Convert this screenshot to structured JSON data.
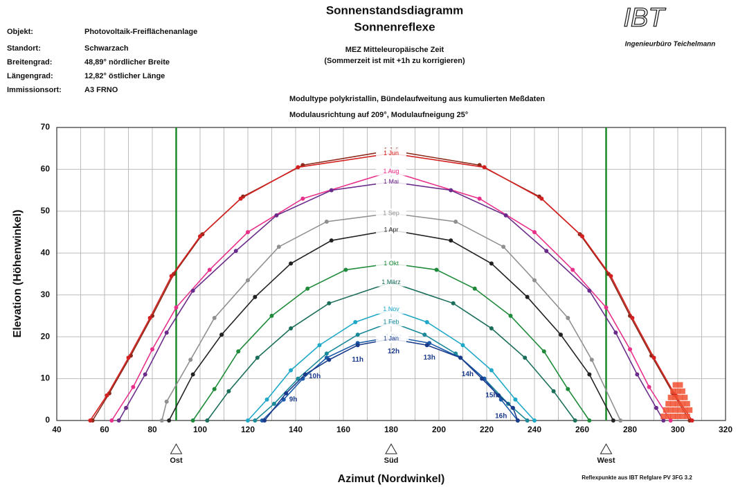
{
  "chart_data": {
    "type": "line",
    "title": "Sonnenstandsdiagramm",
    "subtitle": "Sonnenreflexe",
    "note1": "MEZ Mitteleuropäische Zeit",
    "note2": "(Sommerzeit ist mit +1h zu korrigieren)",
    "info": [
      [
        "Objekt:",
        "Photovoltaik-Freiflächenanlage"
      ],
      [
        "Standort:",
        "Schwarzach"
      ],
      [
        "Breitengrad:",
        "48,89°  nördlicher Breite"
      ],
      [
        "Längengrad:",
        "12,82°  östlicher Länge"
      ],
      [
        "Immissionsort:",
        "A3 FRNO"
      ]
    ],
    "module1": "Modultype polykristallin, Bündelaufweitung aus kumulierten Meßdaten",
    "module2": "Modulausrichtung auf 209°, Modulaufneigung 25°",
    "logo": "IBT",
    "logo_sub": "Ingenieurbüro Teichelmann",
    "footer": "Reflexpunkte aus IBT Refglare PV 3FG 3.2",
    "xlabel": "Azimut (Nordwinkel)",
    "ylabel": "Elevation (Höhenwinkel)",
    "xlim": [
      40,
      320
    ],
    "ylim": [
      0,
      70
    ],
    "xticks": [
      40,
      60,
      80,
      100,
      120,
      140,
      160,
      180,
      200,
      220,
      240,
      260,
      280,
      300,
      320
    ],
    "xgrid": [
      50,
      70,
      90,
      110,
      130,
      150,
      170,
      190,
      210,
      230,
      250,
      270,
      290,
      310
    ],
    "yticks": [
      0,
      10,
      20,
      30,
      40,
      50,
      60,
      70
    ],
    "grid": true,
    "directions": [
      {
        "value": 90,
        "label": "Ost"
      },
      {
        "value": 180,
        "label": "Süd"
      },
      {
        "value": 270,
        "label": "West"
      }
    ],
    "direction_color": "#1a8a2a",
    "series": [
      {
        "name": "1 Juli",
        "color": "#8b2a1a",
        "x": [
          55,
          62,
          71,
          80,
          89,
          101,
          118,
          143,
          180,
          217,
          242,
          259,
          271,
          280,
          289,
          298,
          305
        ],
        "values": [
          0,
          6.5,
          15.5,
          25,
          35,
          44.5,
          53.5,
          61,
          64.5,
          61,
          53.5,
          44.5,
          35,
          25,
          15.5,
          6.5,
          0
        ]
      },
      {
        "name": "1 Jun",
        "color": "#d42020",
        "x": [
          54,
          61,
          70,
          79,
          88,
          100,
          117,
          141,
          180,
          219,
          243,
          260,
          272,
          281,
          290,
          299,
          306
        ],
        "values": [
          0,
          6,
          15,
          24.5,
          34.5,
          44,
          53,
          60.5,
          63.8,
          60.5,
          53,
          44,
          34.5,
          24.5,
          15,
          6,
          0
        ]
      },
      {
        "name": "1 Aug",
        "color": "#e8308a",
        "x": [
          63,
          72,
          80,
          90,
          104,
          120,
          143,
          180,
          217,
          240,
          256,
          270,
          280,
          288,
          297
        ],
        "values": [
          0,
          8,
          17,
          27,
          36,
          45,
          53,
          59.5,
          53,
          45,
          36,
          27,
          17,
          8,
          0
        ]
      },
      {
        "name": "1 Mai",
        "color": "#6a2c8a",
        "x": [
          66,
          69,
          77,
          86,
          97,
          115,
          132,
          155,
          180,
          205,
          228,
          245,
          263,
          274,
          283,
          291,
          294
        ],
        "values": [
          0,
          3,
          11,
          21,
          31,
          40.5,
          49,
          55,
          57,
          55,
          49,
          40.5,
          31,
          21,
          11,
          3,
          0
        ]
      },
      {
        "name": "1 Sep",
        "color": "#909090",
        "x": [
          84,
          86,
          96,
          106,
          120,
          133,
          153,
          180,
          207,
          227,
          240,
          254,
          264,
          276
        ],
        "values": [
          0,
          4.5,
          14.5,
          24.5,
          33.5,
          41.5,
          47.5,
          49.5,
          47.5,
          41.5,
          33.5,
          24.5,
          14.5,
          0
        ]
      },
      {
        "name": "1 Apr",
        "color": "#222222",
        "x": [
          87,
          97,
          109,
          123,
          138,
          155,
          180,
          205,
          222,
          237,
          251,
          263,
          273
        ],
        "values": [
          0,
          11,
          20.5,
          29.5,
          37.5,
          43,
          45.5,
          43,
          37.5,
          29.5,
          20.5,
          11,
          0
        ]
      },
      {
        "name": "1 Okt",
        "color": "#1f8a3a",
        "x": [
          97,
          106,
          116,
          130,
          145,
          161,
          180,
          199,
          215,
          230,
          244,
          254,
          263
        ],
        "values": [
          0,
          7.5,
          16.5,
          25,
          31.5,
          36,
          37.5,
          36,
          31.5,
          25,
          16.5,
          7.5,
          0
        ]
      },
      {
        "name": "1 März",
        "color": "#1a6e5a",
        "x": [
          103,
          112,
          124,
          138,
          154,
          180,
          206,
          222,
          236,
          248,
          257
        ],
        "values": [
          0,
          7,
          15,
          22,
          28,
          33,
          28,
          22,
          15,
          7,
          0
        ]
      },
      {
        "name": "1 Nov",
        "color": "#20a8c8",
        "x": [
          120,
          128,
          138,
          150,
          165,
          180,
          195,
          210,
          222,
          232,
          240
        ],
        "values": [
          0,
          5,
          12,
          18,
          23.5,
          26.5,
          23.5,
          18,
          12,
          5,
          0
        ]
      },
      {
        "name": "1 Feb",
        "color": "#1a8a9a",
        "x": [
          123,
          131,
          141,
          153,
          166,
          180,
          194,
          207,
          219,
          229,
          237
        ],
        "values": [
          0,
          4,
          10,
          16,
          20.5,
          23.5,
          20.5,
          16,
          10,
          4,
          0
        ]
      },
      {
        "name": "1 Dez",
        "color": "#1a5aa8",
        "x": [
          126,
          135,
          143,
          153,
          166,
          181,
          196,
          209,
          219,
          226,
          233
        ],
        "values": [
          0,
          5,
          10,
          15,
          18.5,
          20,
          18.5,
          15,
          10,
          5,
          0
        ]
      },
      {
        "name": "1 Jan",
        "color": "#1a3a8a",
        "x": [
          127,
          136,
          144,
          154,
          166,
          180,
          195,
          209,
          218,
          225,
          231,
          233
        ],
        "values": [
          0,
          6.5,
          11,
          14.5,
          18,
          19.5,
          18,
          15,
          10,
          6,
          3,
          0
        ]
      }
    ],
    "hours": [
      {
        "label": "9h",
        "x": 139,
        "y": 5
      },
      {
        "label": "10h",
        "x": 148,
        "y": 10.5
      },
      {
        "label": "11h",
        "x": 166,
        "y": 14.5
      },
      {
        "label": "12h",
        "x": 181,
        "y": 16.5
      },
      {
        "label": "13h",
        "x": 196,
        "y": 15
      },
      {
        "label": "14h",
        "x": 212,
        "y": 11
      },
      {
        "label": "15h",
        "x": 222,
        "y": 6
      },
      {
        "label": "16h",
        "x": 226,
        "y": 1
      }
    ],
    "hour_color": "#1a3a8a",
    "reflex": {
      "color": "#f05030",
      "x": [
        294,
        296,
        298,
        300,
        302,
        304,
        295,
        297,
        299,
        301,
        303,
        305,
        296,
        298,
        300,
        302,
        304,
        297,
        299,
        301,
        303,
        298,
        300,
        302,
        299,
        301
      ],
      "y": [
        1,
        1,
        1,
        1,
        1,
        1,
        2.5,
        2.5,
        2.5,
        2.5,
        2.5,
        2.5,
        4,
        4,
        4,
        4,
        4,
        5.5,
        5.5,
        5.5,
        5.5,
        7,
        7,
        7,
        8.5,
        8.5
      ]
    }
  }
}
